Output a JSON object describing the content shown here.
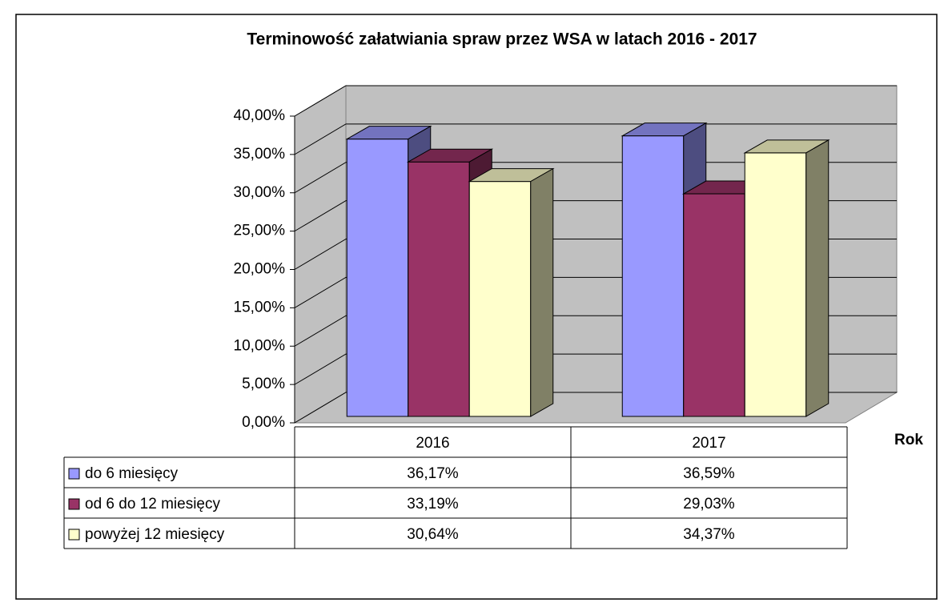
{
  "chart_data": {
    "type": "bar3d",
    "title": "Terminowość załatwiania spraw przez WSA w latach 2016 - 2017",
    "x_label": "Rok",
    "categories": [
      "2016",
      "2017"
    ],
    "series": [
      {
        "name": "do 6 miesięcy",
        "color": "#9999ff",
        "values": [
          36.17,
          36.59
        ],
        "value_labels": [
          "36,17%",
          "36,59%"
        ]
      },
      {
        "name": "od 6 do 12 miesięcy",
        "color": "#993366",
        "values": [
          33.19,
          29.03
        ],
        "value_labels": [
          "33,19%",
          "29,03%"
        ]
      },
      {
        "name": "powyżej 12 miesięcy",
        "color": "#ffffcc",
        "values": [
          30.64,
          34.37
        ],
        "value_labels": [
          "30,64%",
          "34,37%"
        ]
      }
    ],
    "ylim": [
      0,
      40
    ],
    "yticks": [
      {
        "value": 0,
        "label": "0,00%"
      },
      {
        "value": 5,
        "label": "5,00%"
      },
      {
        "value": 10,
        "label": "10,00%"
      },
      {
        "value": 15,
        "label": "15,00%"
      },
      {
        "value": 20,
        "label": "20,00%"
      },
      {
        "value": 25,
        "label": "25,00%"
      },
      {
        "value": 30,
        "label": "30,00%"
      },
      {
        "value": 35,
        "label": "35,00%"
      },
      {
        "value": 40,
        "label": "40,00%"
      }
    ],
    "grid": true
  }
}
